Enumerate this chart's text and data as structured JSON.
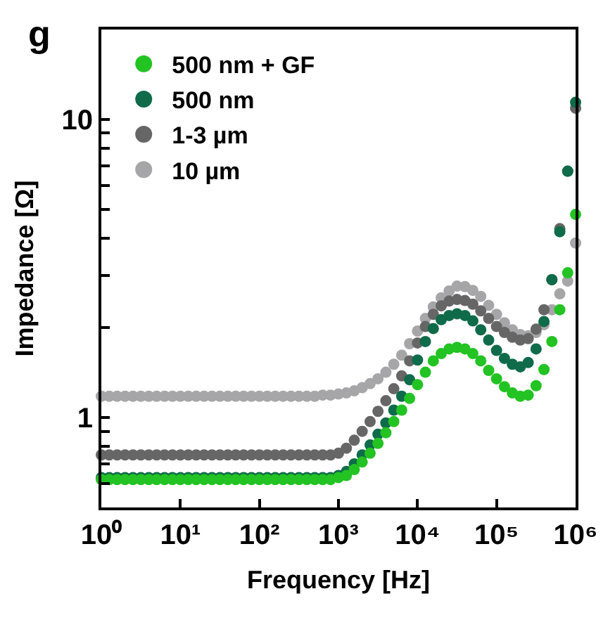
{
  "chart_data": {
    "type": "scatter",
    "annotations": [
      "g"
    ],
    "xlabel": "Frequency [Hz]",
    "ylabel": "Impedance [Ω]",
    "x": [
      1,
      1.259,
      1.585,
      1.995,
      2.512,
      3.162,
      3.981,
      5.012,
      6.31,
      7.943,
      10,
      12.59,
      15.85,
      19.95,
      25.12,
      31.62,
      39.81,
      50.12,
      63.1,
      79.43,
      100,
      125.9,
      158.5,
      199.5,
      251.2,
      316.2,
      398.1,
      501.2,
      631,
      794.3,
      1000,
      1259,
      1585,
      1995,
      2512,
      3162,
      3981,
      5012,
      6310,
      7943,
      10000,
      12589,
      15849,
      19953,
      25119,
      31623,
      39811,
      50119,
      63096,
      79433,
      100000,
      125893,
      158489,
      199526,
      251189,
      316228,
      398107,
      501187,
      630957,
      794328,
      1000000
    ],
    "series": [
      {
        "name": "500 nm + GF",
        "color": "#22c322",
        "values": [
          0.62,
          0.62,
          0.62,
          0.62,
          0.62,
          0.62,
          0.62,
          0.62,
          0.62,
          0.62,
          0.62,
          0.62,
          0.62,
          0.62,
          0.62,
          0.62,
          0.62,
          0.62,
          0.62,
          0.62,
          0.62,
          0.62,
          0.62,
          0.62,
          0.62,
          0.62,
          0.62,
          0.62,
          0.62,
          0.62,
          0.63,
          0.64,
          0.67,
          0.71,
          0.76,
          0.82,
          0.89,
          0.97,
          1.06,
          1.16,
          1.29,
          1.42,
          1.55,
          1.64,
          1.7,
          1.72,
          1.7,
          1.64,
          1.55,
          1.44,
          1.35,
          1.27,
          1.21,
          1.18,
          1.19,
          1.28,
          1.45,
          1.8,
          2.3,
          3.06,
          4.8
        ]
      },
      {
        "name": "500 nm",
        "color": "#0f6b4a",
        "values": [
          0.63,
          0.63,
          0.63,
          0.63,
          0.63,
          0.63,
          0.63,
          0.63,
          0.63,
          0.63,
          0.63,
          0.63,
          0.63,
          0.63,
          0.63,
          0.63,
          0.63,
          0.63,
          0.63,
          0.63,
          0.63,
          0.63,
          0.63,
          0.63,
          0.63,
          0.63,
          0.63,
          0.63,
          0.63,
          0.63,
          0.64,
          0.66,
          0.7,
          0.75,
          0.81,
          0.88,
          0.96,
          1.06,
          1.18,
          1.34,
          1.56,
          1.8,
          1.99,
          2.13,
          2.2,
          2.23,
          2.2,
          2.11,
          1.97,
          1.82,
          1.68,
          1.58,
          1.51,
          1.48,
          1.53,
          1.7,
          2.1,
          2.9,
          4.2,
          6.7,
          11.4
        ]
      },
      {
        "name": "1-3 µm",
        "color": "#666666",
        "values": [
          0.75,
          0.75,
          0.75,
          0.75,
          0.75,
          0.75,
          0.75,
          0.75,
          0.75,
          0.75,
          0.75,
          0.75,
          0.75,
          0.75,
          0.75,
          0.75,
          0.75,
          0.75,
          0.75,
          0.75,
          0.75,
          0.75,
          0.75,
          0.75,
          0.75,
          0.75,
          0.75,
          0.75,
          0.75,
          0.75,
          0.76,
          0.79,
          0.84,
          0.9,
          0.97,
          1.05,
          1.14,
          1.25,
          1.38,
          1.55,
          1.78,
          2.02,
          2.22,
          2.37,
          2.46,
          2.49,
          2.47,
          2.4,
          2.28,
          2.15,
          2.02,
          1.93,
          1.86,
          1.82,
          1.84,
          1.98,
          2.3,
          2.9,
          4.3,
          6.7,
          10.9
        ]
      },
      {
        "name": "10 µm",
        "color": "#a6a6a8",
        "values": [
          1.18,
          1.18,
          1.18,
          1.18,
          1.18,
          1.18,
          1.18,
          1.18,
          1.18,
          1.18,
          1.18,
          1.18,
          1.18,
          1.18,
          1.18,
          1.18,
          1.18,
          1.18,
          1.18,
          1.18,
          1.18,
          1.18,
          1.18,
          1.18,
          1.18,
          1.18,
          1.18,
          1.18,
          1.19,
          1.19,
          1.2,
          1.21,
          1.23,
          1.26,
          1.3,
          1.35,
          1.42,
          1.51,
          1.62,
          1.77,
          1.95,
          2.15,
          2.35,
          2.52,
          2.66,
          2.76,
          2.75,
          2.67,
          2.55,
          2.38,
          2.22,
          2.08,
          1.97,
          1.9,
          1.88,
          1.93,
          2.05,
          2.3,
          2.6,
          2.87,
          3.85
        ]
      }
    ],
    "log": "xy",
    "xlim": [
      1,
      1000000
    ],
    "xticks": [
      {
        "value": 1,
        "label": "10⁰"
      },
      {
        "value": 10,
        "label": "10¹"
      },
      {
        "value": 100,
        "label": "10²"
      },
      {
        "value": 1000,
        "label": "10³"
      },
      {
        "value": 10000,
        "label": "10⁴"
      },
      {
        "value": 100000,
        "label": "10⁵"
      },
      {
        "value": 1000000,
        "label": "10⁶"
      }
    ],
    "ylim": [
      0.5,
      20
    ],
    "yticks": [
      {
        "value": 0.6,
        "label": null
      },
      {
        "value": 0.7,
        "label": null
      },
      {
        "value": 0.8,
        "label": null
      },
      {
        "value": 0.9,
        "label": null
      },
      1,
      {
        "value": 2,
        "label": null
      },
      {
        "value": 3,
        "label": null
      },
      {
        "value": 4,
        "label": null
      },
      {
        "value": 5,
        "label": null
      },
      {
        "value": 6,
        "label": null
      },
      {
        "value": 7,
        "label": null
      },
      {
        "value": 8,
        "label": null
      },
      {
        "value": 9,
        "label": null
      },
      10
    ],
    "marker": "circle",
    "legend": "top left"
  }
}
